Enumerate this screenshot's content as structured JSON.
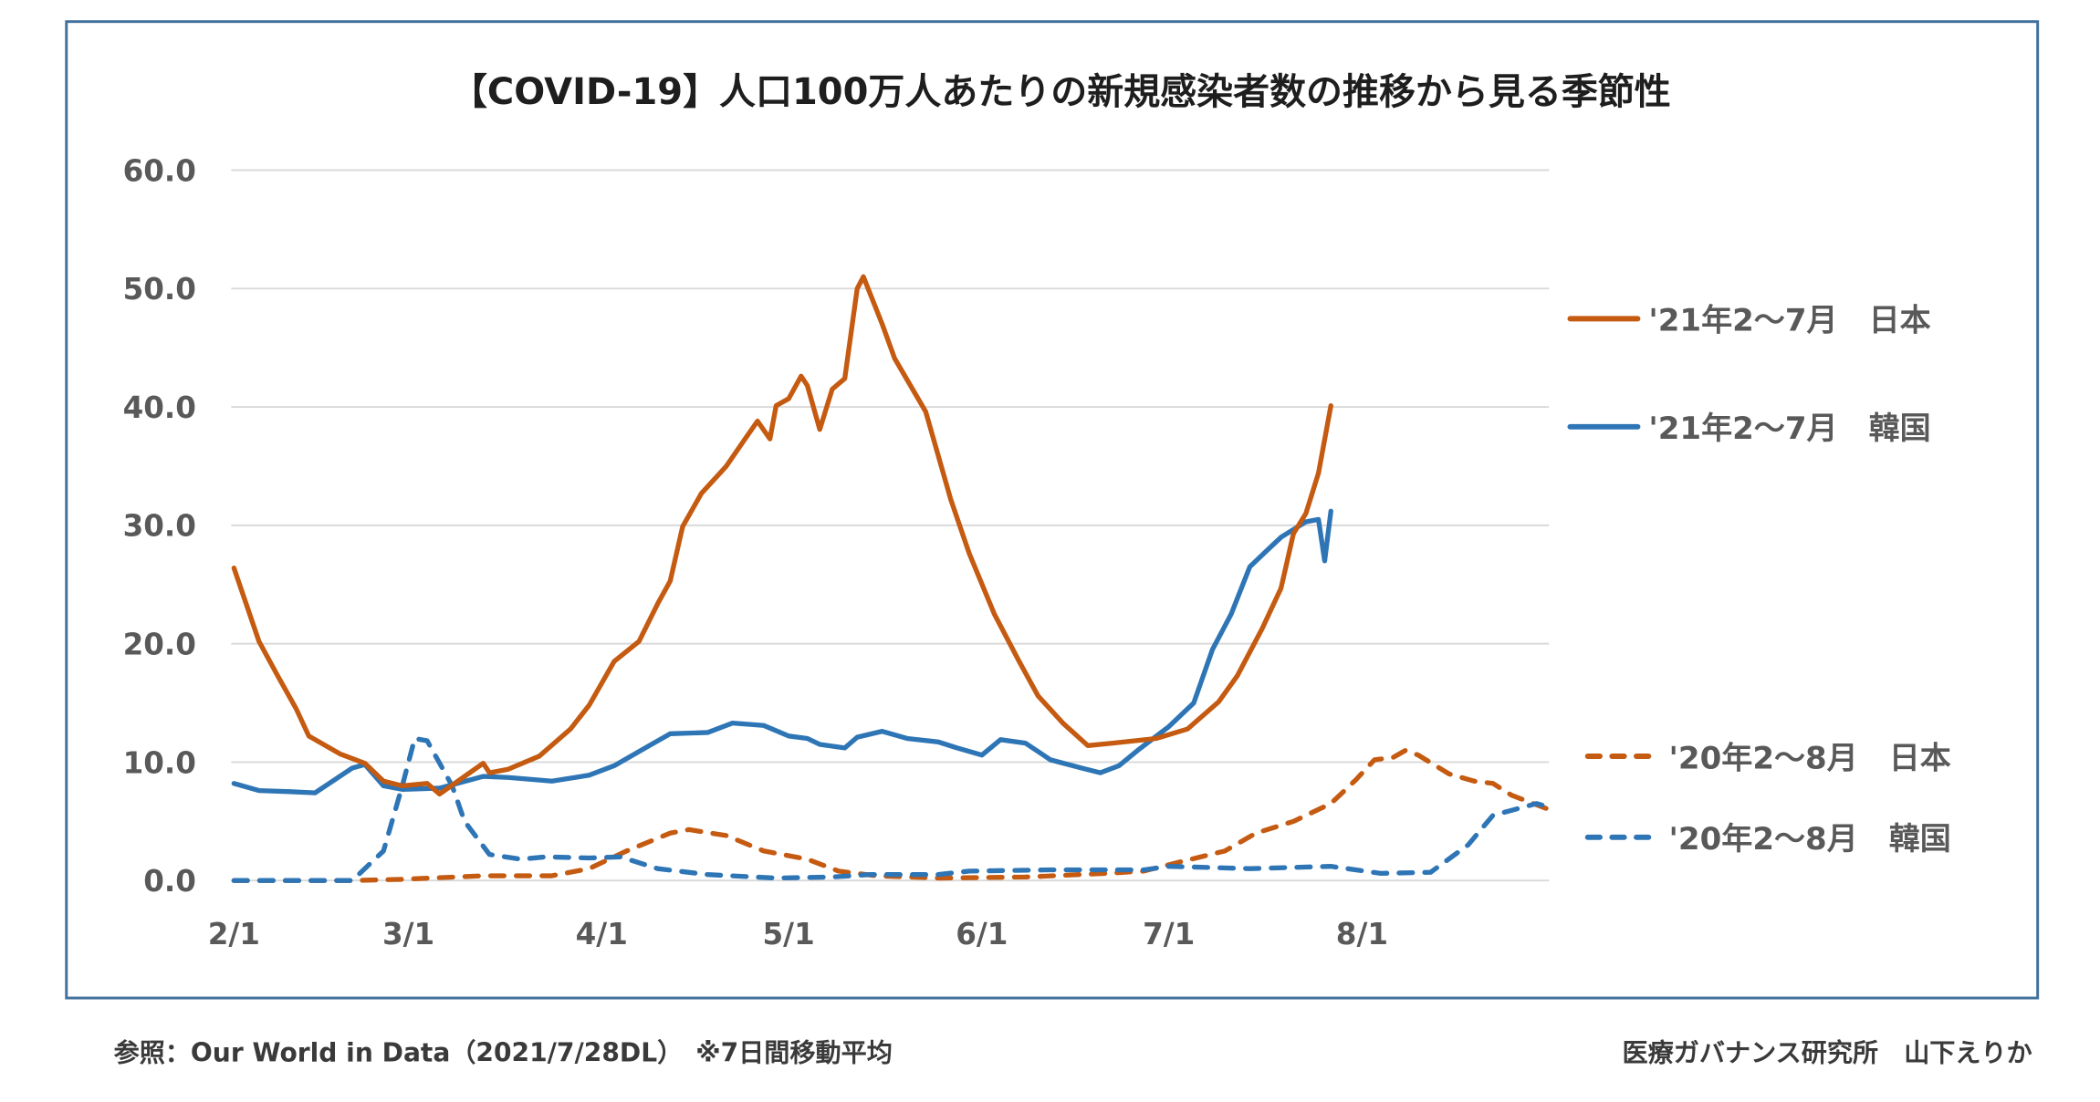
{
  "chart_data": {
    "type": "line",
    "title": "【COVID-19】人口100万人あたりの新規感染者数の推移から見る季節性",
    "xlabel": "",
    "ylabel": "",
    "ylim": [
      0,
      60
    ],
    "yticks": [
      "0.0",
      "10.0",
      "20.0",
      "30.0",
      "40.0",
      "50.0",
      "60.0"
    ],
    "xticks": [
      "2/1",
      "3/1",
      "4/1",
      "5/1",
      "6/1",
      "7/1",
      "8/1"
    ],
    "xrange": [
      "2/1",
      "8/31"
    ],
    "grid": true,
    "legend_position": "right",
    "series": [
      {
        "name": "'21年2～7月　日本",
        "color": "#c55a11",
        "style": "solid",
        "points": [
          [
            "2/1",
            26.4
          ],
          [
            "2/5",
            20.2
          ],
          [
            "2/8",
            17.3
          ],
          [
            "2/11",
            14.5
          ],
          [
            "2/13",
            12.2
          ],
          [
            "2/18",
            10.7
          ],
          [
            "2/22",
            9.9
          ],
          [
            "2/25",
            8.4
          ],
          [
            "2/28",
            8.0
          ],
          [
            "3/4",
            8.2
          ],
          [
            "3/6",
            7.3
          ],
          [
            "3/10",
            8.8
          ],
          [
            "3/13",
            9.9
          ],
          [
            "3/14",
            9.1
          ],
          [
            "3/17",
            9.4
          ],
          [
            "3/22",
            10.5
          ],
          [
            "3/27",
            12.8
          ],
          [
            "3/30",
            14.8
          ],
          [
            "4/3",
            18.5
          ],
          [
            "4/7",
            20.2
          ],
          [
            "4/10",
            23.4
          ],
          [
            "4/12",
            25.3
          ],
          [
            "4/14",
            29.9
          ],
          [
            "4/17",
            32.7
          ],
          [
            "4/21",
            35.0
          ],
          [
            "4/24",
            37.3
          ],
          [
            "4/26",
            38.8
          ],
          [
            "4/28",
            37.3
          ],
          [
            "4/29",
            40.1
          ],
          [
            "5/1",
            40.7
          ],
          [
            "5/3",
            42.6
          ],
          [
            "5/4",
            41.8
          ],
          [
            "5/6",
            38.1
          ],
          [
            "5/8",
            41.5
          ],
          [
            "5/10",
            42.4
          ],
          [
            "5/12",
            50.0
          ],
          [
            "5/13",
            51.0
          ],
          [
            "5/16",
            47.0
          ],
          [
            "5/18",
            44.1
          ],
          [
            "5/23",
            39.6
          ],
          [
            "5/27",
            32.2
          ],
          [
            "5/30",
            27.6
          ],
          [
            "6/3",
            22.5
          ],
          [
            "6/7",
            18.5
          ],
          [
            "6/10",
            15.6
          ],
          [
            "6/14",
            13.3
          ],
          [
            "6/18",
            11.4
          ],
          [
            "6/22",
            11.6
          ],
          [
            "6/29",
            12.0
          ],
          [
            "7/4",
            12.8
          ],
          [
            "7/9",
            15.1
          ],
          [
            "7/12",
            17.3
          ],
          [
            "7/16",
            21.3
          ],
          [
            "7/19",
            24.7
          ],
          [
            "7/21",
            29.3
          ],
          [
            "7/23",
            31.0
          ],
          [
            "7/25",
            34.4
          ],
          [
            "7/27",
            40.1
          ]
        ]
      },
      {
        "name": "'21年2～7月　韓国",
        "color": "#2e75b6",
        "style": "solid",
        "points": [
          [
            "2/1",
            8.2
          ],
          [
            "2/5",
            7.6
          ],
          [
            "2/10",
            7.5
          ],
          [
            "2/14",
            7.4
          ],
          [
            "2/20",
            9.5
          ],
          [
            "2/22",
            9.8
          ],
          [
            "2/25",
            8.0
          ],
          [
            "2/28",
            7.7
          ],
          [
            "3/6",
            7.8
          ],
          [
            "3/13",
            8.8
          ],
          [
            "3/17",
            8.7
          ],
          [
            "3/24",
            8.4
          ],
          [
            "3/30",
            8.9
          ],
          [
            "4/3",
            9.7
          ],
          [
            "4/8",
            11.2
          ],
          [
            "4/12",
            12.4
          ],
          [
            "4/18",
            12.5
          ],
          [
            "4/22",
            13.3
          ],
          [
            "4/27",
            13.1
          ],
          [
            "5/1",
            12.2
          ],
          [
            "5/4",
            12.0
          ],
          [
            "5/6",
            11.5
          ],
          [
            "5/10",
            11.2
          ],
          [
            "5/12",
            12.1
          ],
          [
            "5/16",
            12.6
          ],
          [
            "5/20",
            12.0
          ],
          [
            "5/25",
            11.7
          ],
          [
            "5/28",
            11.2
          ],
          [
            "6/1",
            10.6
          ],
          [
            "6/4",
            11.9
          ],
          [
            "6/8",
            11.6
          ],
          [
            "6/12",
            10.2
          ],
          [
            "6/17",
            9.5
          ],
          [
            "6/20",
            9.1
          ],
          [
            "6/23",
            9.7
          ],
          [
            "6/26",
            11.0
          ],
          [
            "7/1",
            13.0
          ],
          [
            "7/5",
            15.0
          ],
          [
            "7/8",
            19.5
          ],
          [
            "7/11",
            22.5
          ],
          [
            "7/14",
            26.5
          ],
          [
            "7/16",
            27.5
          ],
          [
            "7/19",
            29.0
          ],
          [
            "7/23",
            30.3
          ],
          [
            "7/25",
            30.5
          ],
          [
            "7/26",
            27.0
          ],
          [
            "7/27",
            31.2
          ]
        ]
      },
      {
        "name": "'20年2～8月　日本",
        "color": "#c55a11",
        "style": "dashed",
        "points": [
          [
            "2/1",
            0.0
          ],
          [
            "2/20",
            0.0
          ],
          [
            "2/28",
            0.1
          ],
          [
            "3/13",
            0.4
          ],
          [
            "3/24",
            0.4
          ],
          [
            "3/30",
            1.0
          ],
          [
            "4/5",
            2.5
          ],
          [
            "4/12",
            4.0
          ],
          [
            "4/15",
            4.3
          ],
          [
            "4/21",
            3.8
          ],
          [
            "4/27",
            2.5
          ],
          [
            "5/4",
            1.8
          ],
          [
            "5/9",
            0.8
          ],
          [
            "5/15",
            0.4
          ],
          [
            "5/25",
            0.2
          ],
          [
            "6/8",
            0.3
          ],
          [
            "6/21",
            0.6
          ],
          [
            "6/27",
            0.8
          ],
          [
            "7/3",
            1.6
          ],
          [
            "7/10",
            2.5
          ],
          [
            "7/15",
            4.0
          ],
          [
            "7/21",
            5.0
          ],
          [
            "7/27",
            6.5
          ],
          [
            "7/31",
            8.5
          ],
          [
            "8/3",
            10.2
          ],
          [
            "8/6",
            10.4
          ],
          [
            "8/8",
            11.0
          ],
          [
            "8/10",
            10.6
          ],
          [
            "8/15",
            9.0
          ],
          [
            "8/19",
            8.4
          ],
          [
            "8/22",
            8.2
          ],
          [
            "8/25",
            7.2
          ],
          [
            "8/31",
            6.0
          ]
        ]
      },
      {
        "name": "'20年2～8月　韓国",
        "color": "#2e75b6",
        "style": "dashed",
        "points": [
          [
            "2/1",
            0.0
          ],
          [
            "2/20",
            0.0
          ],
          [
            "2/25",
            2.5
          ],
          [
            "2/28",
            8.0
          ],
          [
            "3/2",
            12.0
          ],
          [
            "3/4",
            11.8
          ],
          [
            "3/8",
            8.0
          ],
          [
            "3/10",
            5.0
          ],
          [
            "3/14",
            2.2
          ],
          [
            "3/19",
            1.8
          ],
          [
            "3/23",
            2.0
          ],
          [
            "3/30",
            1.9
          ],
          [
            "4/4",
            2.0
          ],
          [
            "4/10",
            1.0
          ],
          [
            "4/18",
            0.5
          ],
          [
            "4/29",
            0.2
          ],
          [
            "5/8",
            0.3
          ],
          [
            "5/14",
            0.5
          ],
          [
            "5/25",
            0.5
          ],
          [
            "5/30",
            0.8
          ],
          [
            "6/12",
            0.9
          ],
          [
            "6/27",
            0.9
          ],
          [
            "7/1",
            1.2
          ],
          [
            "7/14",
            1.0
          ],
          [
            "7/27",
            1.2
          ],
          [
            "8/4",
            0.6
          ],
          [
            "8/12",
            0.7
          ],
          [
            "8/18",
            3.0
          ],
          [
            "8/22",
            5.5
          ],
          [
            "8/29",
            6.5
          ],
          [
            "8/31",
            6.2
          ]
        ]
      }
    ]
  },
  "footer": {
    "source": "参照：Our World in Data（2021/7/28DL）　※7日間移動平均",
    "author": "医療ガバナンス研究所　山下えりか"
  },
  "colors": {
    "border": "#41719c",
    "grid": "#d9d9d9",
    "japan": "#c55a11",
    "korea": "#2e75b6"
  }
}
